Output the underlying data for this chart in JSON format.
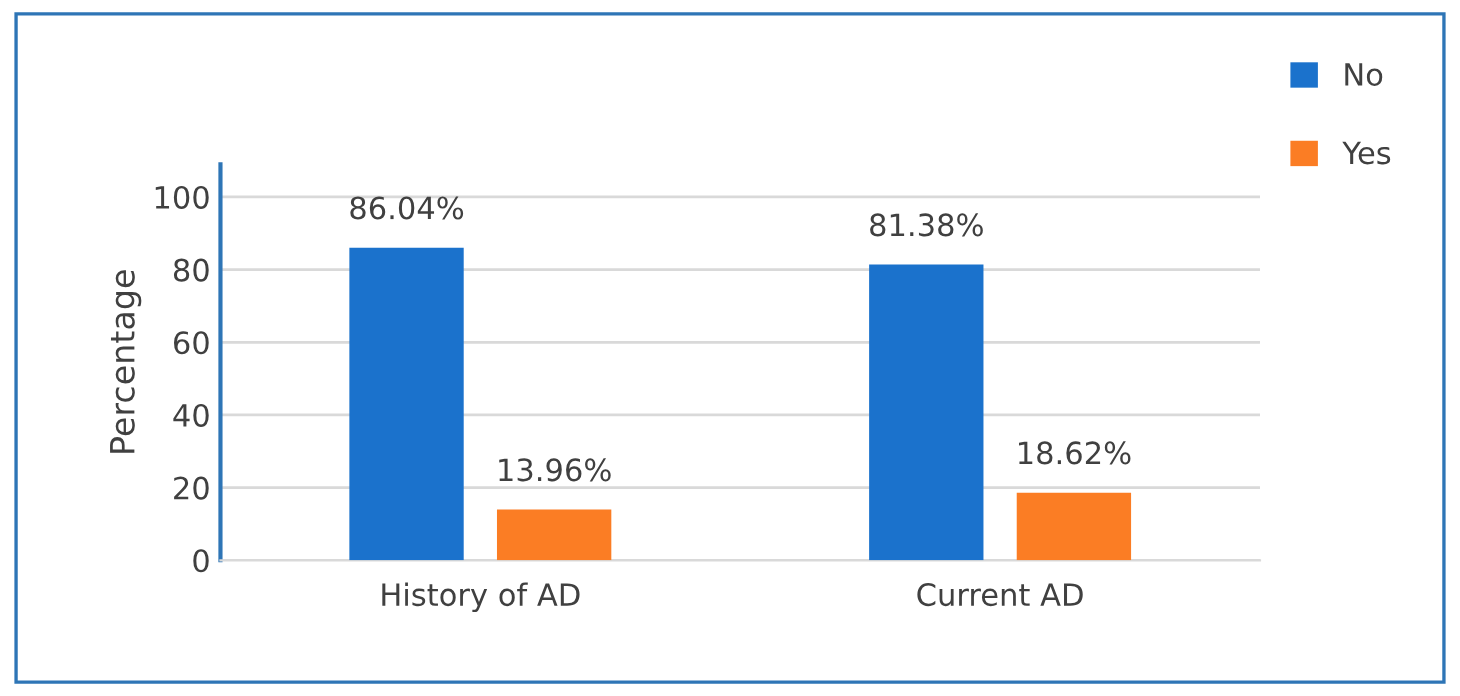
{
  "chart_data": {
    "type": "bar",
    "ylabel": "Percentage",
    "categories": [
      "History of AD",
      "Current AD"
    ],
    "series": [
      {
        "name": "No",
        "color": "#1b72cc",
        "values": [
          86.04,
          81.38
        ],
        "value_labels": [
          "86.04%",
          "81.38%"
        ]
      },
      {
        "name": "Yes",
        "color": "#fb7d24",
        "values": [
          13.96,
          18.62
        ],
        "value_labels": [
          "13.96%",
          "18.62%"
        ]
      }
    ],
    "ylim": [
      0,
      109
    ],
    "yticks": [
      0,
      20,
      40,
      60,
      80,
      100
    ],
    "grid": "y",
    "legend": "top right"
  }
}
